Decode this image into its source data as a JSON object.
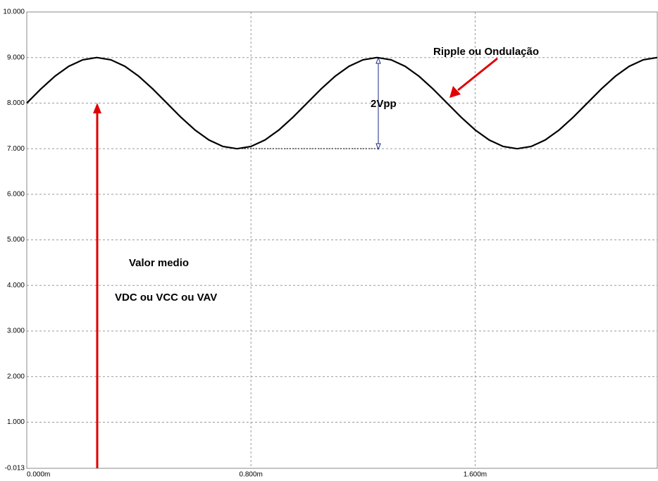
{
  "chart_data": {
    "type": "line",
    "annotations": [
      "Ripple   ou Ondulação",
      "2Vpp",
      "Valor medio",
      "VDC ou  VCC ou VAV"
    ],
    "x": [
      0,
      5e-05,
      0.0001,
      0.00015,
      0.0002,
      0.00025,
      0.0003,
      0.00035,
      0.0004,
      0.00045,
      0.0005,
      0.00055,
      0.0006,
      0.00065,
      0.0007,
      0.00075,
      0.0008,
      0.00085,
      0.0009,
      0.00095,
      0.001,
      0.00105,
      0.0011,
      0.00115,
      0.0012,
      0.00125,
      0.0013,
      0.00135,
      0.0014,
      0.00145,
      0.0015,
      0.00155,
      0.0016,
      0.00165,
      0.0017,
      0.00175,
      0.0018,
      0.00185,
      0.0019,
      0.00195,
      0.002,
      0.00205,
      0.0021,
      0.00215,
      0.0022,
      0.00225
    ],
    "series": [
      {
        "color": "#000000",
        "values": [
          8,
          8.309,
          8.588,
          8.809,
          8.951,
          9,
          8.951,
          8.809,
          8.588,
          8.309,
          8,
          7.691,
          7.412,
          7.191,
          7.049,
          7,
          7.049,
          7.191,
          7.412,
          7.691,
          8,
          8.309,
          8.588,
          8.809,
          8.951,
          9,
          8.951,
          8.809,
          8.588,
          8.309,
          8,
          7.691,
          7.412,
          7.191,
          7.049,
          7,
          7.049,
          7.191,
          7.412,
          7.691,
          8,
          8.309,
          8.588,
          8.809,
          8.951,
          9
        ]
      }
    ],
    "xlim": [
      0,
      0.00225
    ],
    "xticks": [
      {
        "value": 0,
        "label": "0.000m"
      },
      {
        "value": 0.0008,
        "label": "0.800m"
      },
      {
        "value": 0.0016,
        "label": "1.600m"
      }
    ],
    "ylim": [
      -0.013,
      10
    ],
    "yticks": [
      {
        "value": -0.013,
        "label": "-0.013"
      },
      {
        "value": 1,
        "label": "1.000"
      },
      {
        "value": 2,
        "label": "2.000"
      },
      {
        "value": 3,
        "label": "3.000"
      },
      {
        "value": 4,
        "label": "4.000"
      },
      {
        "value": 5,
        "label": "5.000"
      },
      {
        "value": 6,
        "label": "6.000"
      },
      {
        "value": 7,
        "label": "7.000"
      },
      {
        "value": 8,
        "label": "8.000"
      },
      {
        "value": 9,
        "label": "9.000"
      },
      {
        "value": 10,
        "label": "10.000"
      }
    ],
    "grid": true
  }
}
